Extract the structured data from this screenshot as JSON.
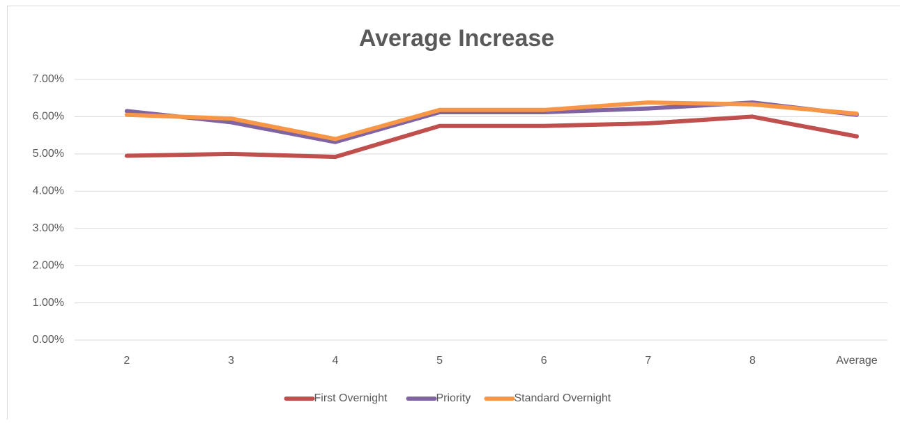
{
  "chart_data": {
    "type": "line",
    "title": "Average Increase",
    "categories": [
      "2",
      "3",
      "4",
      "5",
      "6",
      "7",
      "8",
      "Average"
    ],
    "series": [
      {
        "name": "First Overnight",
        "color": "#c0504d",
        "values": [
          4.95,
          5.0,
          4.92,
          5.75,
          5.75,
          5.82,
          6.0,
          5.47
        ]
      },
      {
        "name": "Priority",
        "color": "#8064a2",
        "values": [
          6.15,
          5.85,
          5.32,
          6.12,
          6.12,
          6.22,
          6.38,
          6.05
        ]
      },
      {
        "name": "Standard Overnight",
        "color": "#f79646",
        "values": [
          6.05,
          5.95,
          5.4,
          6.18,
          6.18,
          6.38,
          6.33,
          6.08
        ]
      }
    ],
    "ylim": [
      0,
      7
    ],
    "yticks": [
      {
        "value": 0,
        "label": "0.00%"
      },
      {
        "value": 1,
        "label": "1.00%"
      },
      {
        "value": 2,
        "label": "2.00%"
      },
      {
        "value": 3,
        "label": "3.00%"
      },
      {
        "value": 4,
        "label": "4.00%"
      },
      {
        "value": 5,
        "label": "5.00%"
      },
      {
        "value": 6,
        "label": "6.00%"
      },
      {
        "value": 7,
        "label": "7.00%"
      }
    ],
    "grid": true,
    "legend": "bottom"
  }
}
